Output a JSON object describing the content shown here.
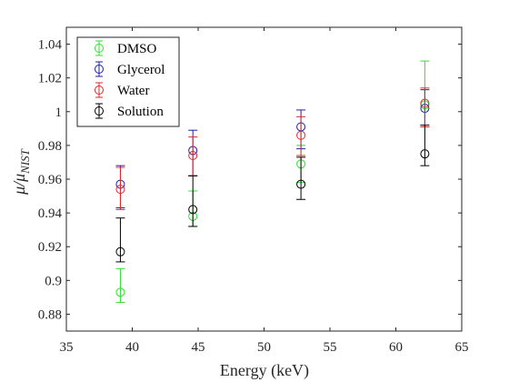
{
  "chart_data": {
    "type": "scatter",
    "title": "",
    "xlabel": "Energy (keV)",
    "ylabel": "μ/μ_NIST",
    "ylabel_main": "μ/μ",
    "ylabel_sub": "NIST",
    "xlim": [
      35,
      65
    ],
    "ylim": [
      0.87,
      1.05
    ],
    "xticks": [
      35,
      40,
      45,
      50,
      55,
      60,
      65
    ],
    "yticks": [
      0.88,
      0.9,
      0.92,
      0.94,
      0.96,
      0.98,
      1,
      1.02,
      1.04
    ],
    "xtick_labels": [
      "35",
      "40",
      "45",
      "50",
      "55",
      "60",
      "65"
    ],
    "ytick_labels": [
      "0.88",
      "0.9",
      "0.92",
      "0.94",
      "0.96",
      "0.98",
      "1",
      "1.02",
      "1.04"
    ],
    "grid": false,
    "legend_position": "top-left",
    "marker": "circle",
    "series": [
      {
        "name": "DMSO",
        "color": "#33dd33",
        "points": [
          {
            "x": 39.1,
            "y": 0.893,
            "yerr_low": 0.887,
            "yerr_high": 0.907
          },
          {
            "x": 44.6,
            "y": 0.938,
            "yerr_low": 0.932,
            "yerr_high": 0.953
          },
          {
            "x": 52.8,
            "y": 0.969,
            "yerr_low": 0.958,
            "yerr_high": 0.98
          },
          {
            "x": 62.2,
            "y": 1.004,
            "yerr_low": 0.991,
            "yerr_high": 1.03
          }
        ]
      },
      {
        "name": "Glycerol",
        "color": "#1f1fa8",
        "points": [
          {
            "x": 39.1,
            "y": 0.957,
            "yerr_low": 0.943,
            "yerr_high": 0.968
          },
          {
            "x": 44.6,
            "y": 0.977,
            "yerr_low": 0.962,
            "yerr_high": 0.989
          },
          {
            "x": 52.8,
            "y": 0.991,
            "yerr_low": 0.978,
            "yerr_high": 1.001
          },
          {
            "x": 62.2,
            "y": 1.002,
            "yerr_low": 0.991,
            "yerr_high": 1.013
          }
        ]
      },
      {
        "name": "Water",
        "color": "#dd2a2a",
        "points": [
          {
            "x": 39.1,
            "y": 0.954,
            "yerr_low": 0.942,
            "yerr_high": 0.967
          },
          {
            "x": 44.6,
            "y": 0.974,
            "yerr_low": 0.962,
            "yerr_high": 0.985
          },
          {
            "x": 52.8,
            "y": 0.986,
            "yerr_low": 0.974,
            "yerr_high": 0.997
          },
          {
            "x": 62.2,
            "y": 1.005,
            "yerr_low": 0.991,
            "yerr_high": 1.014
          }
        ]
      },
      {
        "name": "Solution",
        "color": "#000000",
        "points": [
          {
            "x": 39.1,
            "y": 0.917,
            "yerr_low": 0.911,
            "yerr_high": 0.937
          },
          {
            "x": 44.6,
            "y": 0.942,
            "yerr_low": 0.932,
            "yerr_high": 0.962
          },
          {
            "x": 52.8,
            "y": 0.957,
            "yerr_low": 0.948,
            "yerr_high": 0.973
          },
          {
            "x": 62.2,
            "y": 0.975,
            "yerr_low": 0.968,
            "yerr_high": 0.992
          }
        ]
      }
    ]
  }
}
